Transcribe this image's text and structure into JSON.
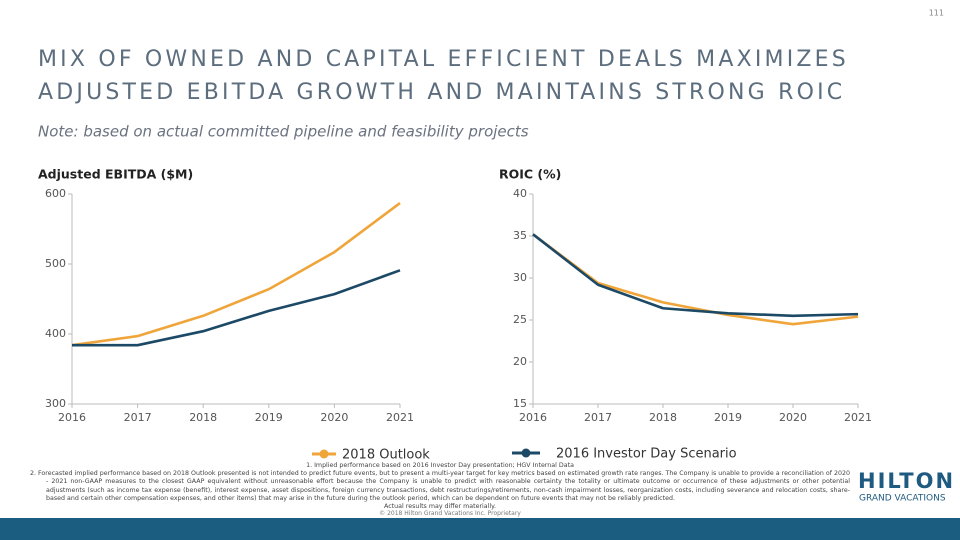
{
  "page_number": "111",
  "title_lines": [
    "MIX OF OWNED AND CAPITAL EFFICIENT DEALS MAXIMIZES",
    "ADJUSTED EBITDA GROWTH AND MAINTAINS STRONG ROIC"
  ],
  "note": "Note: based on actual committed pipeline and feasibility projects",
  "chart_data": [
    {
      "type": "line",
      "y_label": "Adjusted EBITDA ($M)",
      "categories": [
        "2016",
        "2017",
        "2018",
        "2019",
        "2020",
        "2021"
      ],
      "ylim": [
        300,
        600
      ],
      "yticks": [
        300,
        400,
        500,
        600
      ],
      "series": [
        {
          "name": "2018 Outlook",
          "color": "#f0a53a",
          "values": [
            384,
            397,
            426,
            464,
            517,
            587
          ]
        },
        {
          "name": "2016 Investor Day Scenario",
          "color": "#1c4966",
          "values": [
            384,
            384,
            404,
            433,
            457,
            491
          ]
        }
      ]
    },
    {
      "type": "line",
      "y_label": "ROIC (%)",
      "categories": [
        "2016",
        "2017",
        "2018",
        "2019",
        "2020",
        "2021"
      ],
      "ylim": [
        15,
        40
      ],
      "yticks": [
        15,
        20,
        25,
        30,
        35,
        40
      ],
      "series": [
        {
          "color": "#f0a53a",
          "values": [
            35.2,
            29.4,
            27.1,
            25.6,
            24.5,
            25.4
          ]
        },
        {
          "color": "#1c4966",
          "values": [
            35.2,
            29.2,
            26.4,
            25.8,
            25.5,
            25.7
          ]
        }
      ]
    }
  ],
  "footnotes": [
    "1.     Implied performance based on 2016 Investor Day presentation; HGV Internal Data",
    "2.     Forecasted implied performance based on 2018 Outlook presented is not intended to predict future events, but to present a multi-year target for key metrics based on estimated growth rate ranges. The Company is unable to provide a reconciliation of 2020 - 2021 non-GAAP measures to the closest GAAP equivalent without unreasonable effort because the Company is unable to predict with reasonable certainty the totality or ultimate outcome or occurrence of these adjustments or other potential adjustments (such as income tax expense (benefit), interest expense, asset dispositions, foreign currency transactions, debt restructurings/retirements, non-cash impairment losses, reorganization costs, including severance and relocation costs, share-based and certain other compensation expenses, and other items) that may arise in the future during the outlook period, which can be dependent on future events that may not be reliably predicted.",
    "Actual results may differ materially."
  ],
  "copyright": "© 2018 Hilton Grand Vacations Inc. Proprietary",
  "logo": {
    "brand": "HILTON",
    "sub": "GRAND VACATIONS"
  }
}
